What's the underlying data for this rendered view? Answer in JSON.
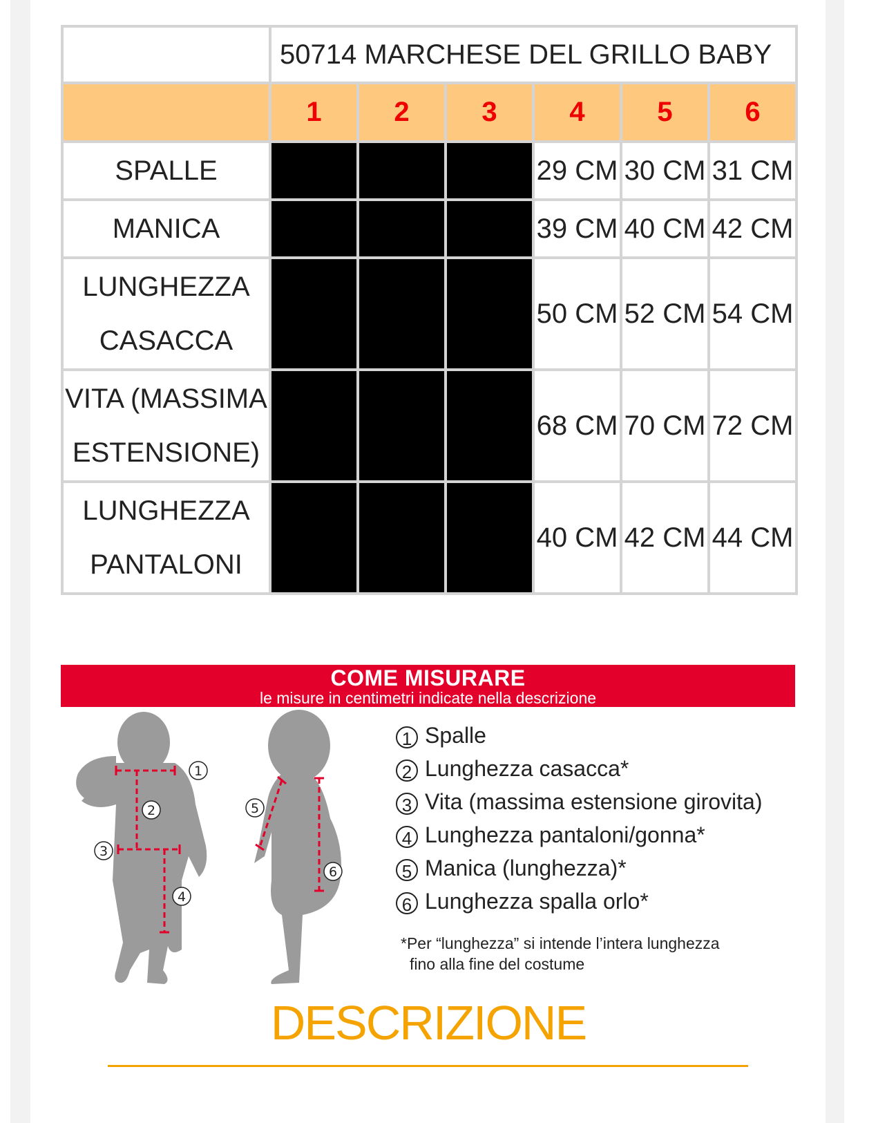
{
  "size_table": {
    "title": "50714 MARCHESE DEL GRILLO BABY",
    "sizes": [
      "1",
      "2",
      "3",
      "4",
      "5",
      "6"
    ],
    "rows": [
      {
        "label_lines": [
          "SPALLE"
        ],
        "values": [
          "",
          "",
          "",
          "29 CM",
          "30 CM",
          "31 CM"
        ]
      },
      {
        "label_lines": [
          "MANICA"
        ],
        "values": [
          "",
          "",
          "",
          "39 CM",
          "40 CM",
          "42 CM"
        ]
      },
      {
        "label_lines": [
          "LUNGHEZZA",
          "CASACCA"
        ],
        "values": [
          "",
          "",
          "",
          "50 CM",
          "52 CM",
          "54 CM"
        ]
      },
      {
        "label_lines": [
          "VITA (MASSIMA",
          "ESTENSIONE)"
        ],
        "values": [
          "",
          "",
          "",
          "68 CM",
          "70 CM",
          "72 CM"
        ]
      },
      {
        "label_lines": [
          "LUNGHEZZA",
          "PANTALONI"
        ],
        "values": [
          "",
          "",
          "",
          "40 CM",
          "42 CM",
          "44 CM"
        ]
      }
    ],
    "colors": {
      "title": "#fbc57d",
      "header_bg": "#fec87f",
      "header_text": "#ee0000",
      "redacted": "#000000"
    }
  },
  "how_to_measure": {
    "title": "COME MISURARE",
    "subtitle": "le misure in centimetri indicate nella descrizione",
    "banner_color": "#e3002b",
    "items": [
      {
        "num": "1",
        "label": "Spalle"
      },
      {
        "num": "2",
        "label": "Lunghezza casacca*"
      },
      {
        "num": "3",
        "label": "Vita (massima estensione girovita)"
      },
      {
        "num": "4",
        "label": "Lunghezza pantaloni/gonna*"
      },
      {
        "num": "5",
        "label": "Manica (lunghezza)*"
      },
      {
        "num": "6",
        "label": "Lunghezza spalla orlo*"
      }
    ],
    "note_line1": "*Per “lunghezza” si intende l’intera lunghezza",
    "note_line2": "fino alla fine del costume"
  },
  "section_heading": "DESCRIZIONE",
  "accent_color": "#f5a300"
}
